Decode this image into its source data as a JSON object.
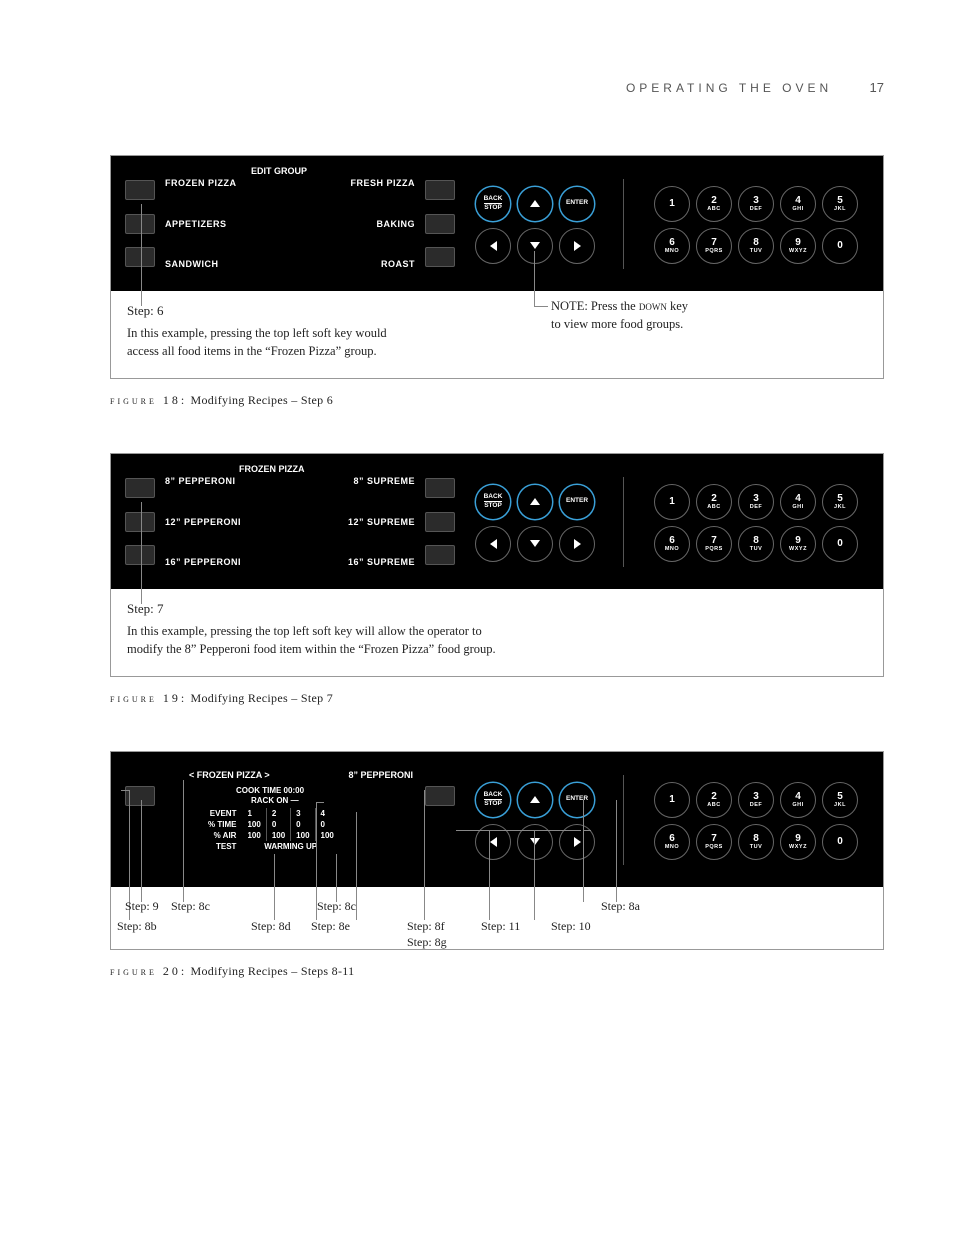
{
  "header": {
    "section": "OPERATING THE OVEN",
    "page_num": "17"
  },
  "fig18": {
    "panel": {
      "header": "EDIT GROUP",
      "left_items": [
        "FROZEN PIZZA",
        "APPETIZERS",
        "SANDWICH"
      ],
      "right_items": [
        "FRESH PIZZA",
        "BAKING",
        "ROAST"
      ]
    },
    "step_label": "Step: 6",
    "step_desc1": "In this example, pressing the top left soft key would",
    "step_desc2": "access all food items in the “Frozen Pizza” group.",
    "note_line1": "NOTE: Press the ",
    "note_kw": "down",
    "note_line1b": " key",
    "note_line2": "to view more food groups.",
    "caption_lead": "figure 18:",
    "caption_rest": " Modifying Recipes – Step 6"
  },
  "fig19": {
    "panel": {
      "header": "FROZEN PIZZA",
      "left_items": [
        "8” PEPPERONI",
        "12” PEPPERONI",
        "16” PEPPERONI"
      ],
      "right_items": [
        "8” SUPREME",
        "12” SUPREME",
        "16” SUPREME"
      ]
    },
    "step_label": "Step: 7",
    "step_desc1": "In this example, pressing the top left soft key will allow the operator to",
    "step_desc2": "modify the 8” Pepperoni food item within the “Frozen Pizza” food group.",
    "caption_lead": "figure 19:",
    "caption_rest": " Modifying Recipes – Step 7"
  },
  "fig20": {
    "title_left": "< FROZEN PIZZA >",
    "title_right": "8” PEPPERONI",
    "sub1": "COOK TIME  00:00",
    "sub2": "RACK ON",
    "row_labels": [
      "EVENT",
      "% TIME",
      "% AIR",
      "TEST"
    ],
    "cols": [
      "1",
      "2",
      "3",
      "4"
    ],
    "row_time": [
      "100",
      "0",
      "0",
      "0"
    ],
    "row_air": [
      "100",
      "100",
      "100",
      "100"
    ],
    "warming": "WARMING UP",
    "step_row1": [
      "Step: 9",
      "Step: 8c",
      "Step: 8c",
      "Step: 8a"
    ],
    "step_row2": [
      "Step: 8b",
      "Step: 8d",
      "Step: 8e",
      "Step: 8f",
      "Step: 11",
      "Step: 10"
    ],
    "step_row3": "Step: 8g",
    "caption_lead": "figure 20:",
    "caption_rest": " Modifying Recipes – Steps 8-11"
  },
  "nav": {
    "back_top": "BACK",
    "back_bot": "STOP",
    "enter": "ENTER"
  },
  "keypad": [
    {
      "n": "1",
      "l": ""
    },
    {
      "n": "2",
      "l": "ABC"
    },
    {
      "n": "3",
      "l": "DEF"
    },
    {
      "n": "4",
      "l": "GHI"
    },
    {
      "n": "5",
      "l": "JKL"
    },
    {
      "n": "6",
      "l": "MNO"
    },
    {
      "n": "7",
      "l": "PQRS"
    },
    {
      "n": "8",
      "l": "TUV"
    },
    {
      "n": "9",
      "l": "WXYZ"
    },
    {
      "n": "0",
      "l": ""
    }
  ]
}
